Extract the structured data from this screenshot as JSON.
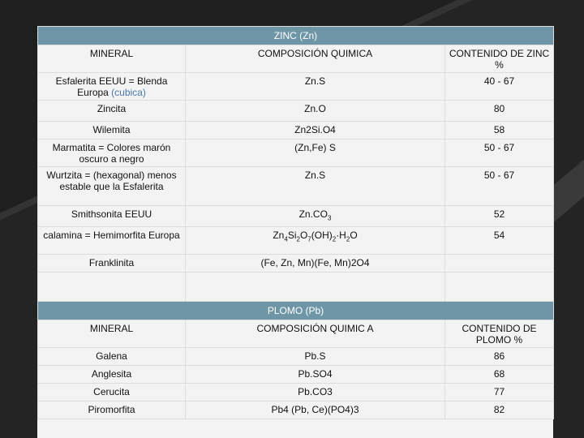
{
  "zinc": {
    "title": "ZINC  (Zn)",
    "headers": [
      "MINERAL",
      "COMPOSICIÓN QUIMICA",
      "CONTENIDO DE ZINC %"
    ],
    "rows": [
      {
        "mineral": "Esfalerita EEUU = Blenda Europa (cubica)",
        "composition": "Zn.S",
        "content": "40 - 67"
      },
      {
        "mineral": "Zincita",
        "composition": "Zn.O",
        "content": "80"
      },
      {
        "mineral": "Wilemita",
        "composition": "Zn2Si.O4",
        "content": "58"
      },
      {
        "mineral": "Marmatita = Colores marón oscuro a negro",
        "composition": "(Zn,Fe) S",
        "content": "50 - 67"
      },
      {
        "mineral": "Wurtzita = (hexagonal) menos estable que la Esfalerita",
        "composition": "Zn.S",
        "content": "50 - 67"
      },
      {
        "mineral": "Smithsonita EEUU",
        "composition": "Zn.CO3",
        "content": "52"
      },
      {
        "mineral": "calamina = Hemimorfita Europa",
        "composition": "Zn4Si2O7(OH)2·H2O",
        "content": "54"
      },
      {
        "mineral": "Franklinita",
        "composition": "(Fe, Zn, Mn)(Fe, Mn)2O4",
        "content": ""
      }
    ]
  },
  "lead": {
    "title": "PLOMO  (Pb)",
    "headers": [
      "MINERAL",
      "COMPOSICIÓN QUIMIC A",
      "CONTENIDO DE PLOMO  %"
    ],
    "rows": [
      {
        "mineral": "Galena",
        "composition": "Pb.S",
        "content": "86"
      },
      {
        "mineral": "Anglesita",
        "composition": "Pb.SO4",
        "content": "68"
      },
      {
        "mineral": "Cerucita",
        "composition": "Pb.CO3",
        "content": "77"
      },
      {
        "mineral": "Piromorfita",
        "composition": "Pb4 (Pb, Ce)(PO4)3",
        "content": "82"
      }
    ]
  },
  "colors": {
    "banner": "#6f96a6",
    "slide_bg": "#f3f3f3",
    "page_bg": "#2b2b2b",
    "accent_text": "#4a78a8"
  }
}
